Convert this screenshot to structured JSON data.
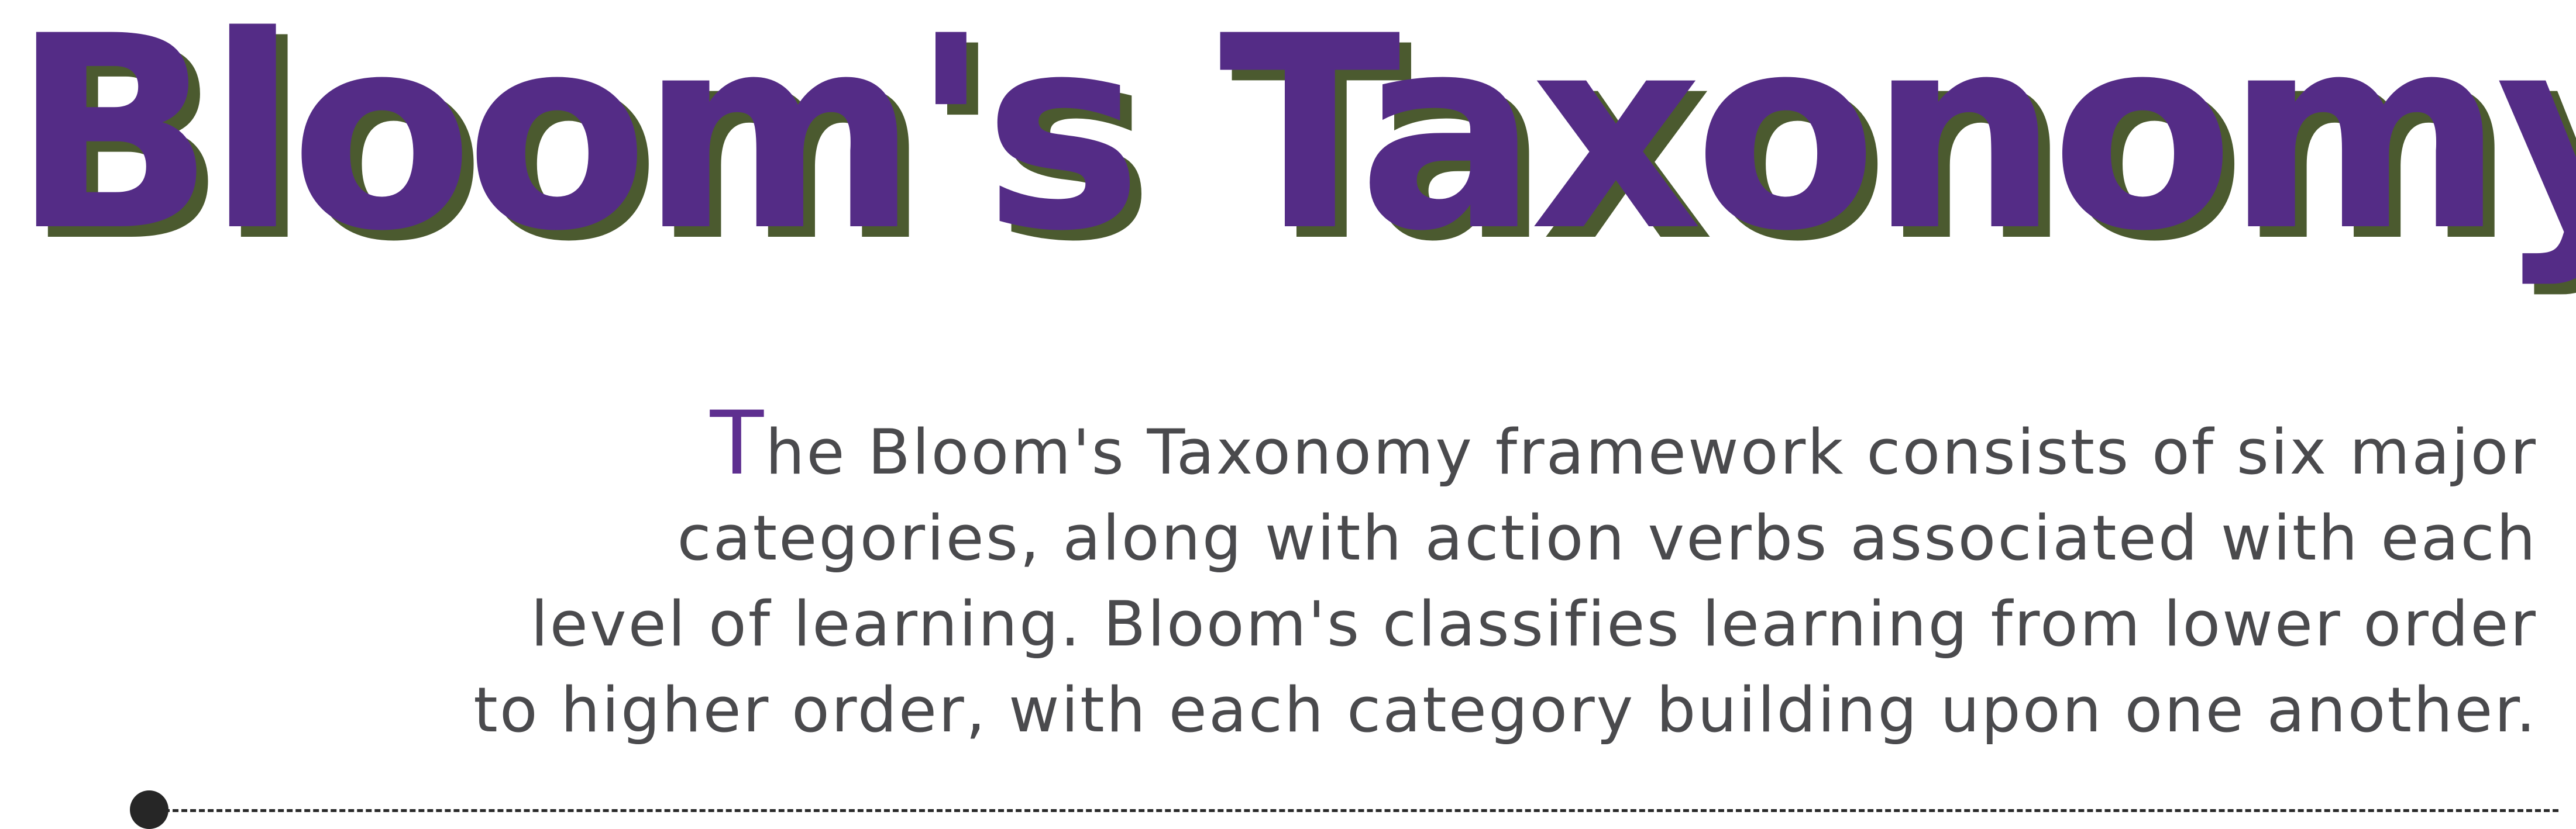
{
  "title": "Bloom's Taxonomy",
  "intro": {
    "drop_cap": "T",
    "lines": [
      "he Bloom's Taxonomy framework consists of six major",
      "categories, along with action verbs associated with each",
      "level of learning. Bloom's classifies learning from lower order",
      "to higher order, with each category building upon one another."
    ]
  },
  "colors": {
    "title": "#542c86",
    "title_shadow": "#4b5a2f",
    "drop_cap": "#5e2f90",
    "body_text": "#4a4a4d",
    "divider": "#2a2a2a"
  }
}
